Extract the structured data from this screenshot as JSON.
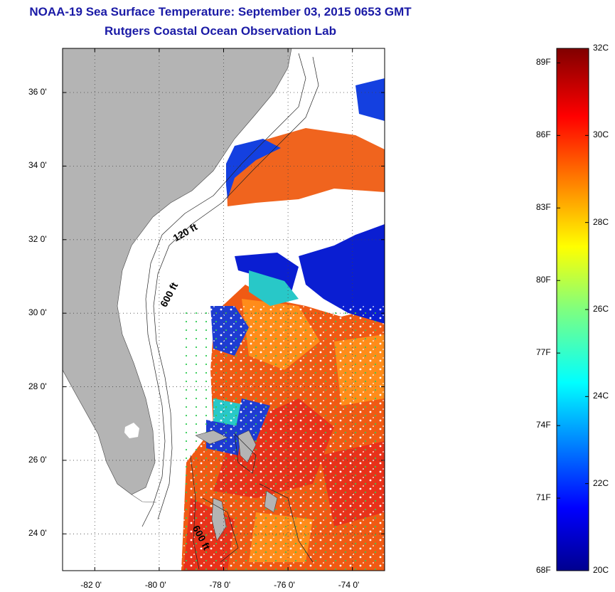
{
  "header": {
    "title": "NOAA-19 Sea Surface Temperature:  September 03, 2015 0653 GMT",
    "subtitle": "Rutgers Coastal Ocean Observation Lab"
  },
  "map": {
    "lat_ticks": [
      "24 0'",
      "26 0'",
      "28 0'",
      "30 0'",
      "32 0'",
      "34 0'",
      "36 0'"
    ],
    "lon_ticks": [
      "-82 0'",
      "-80 0'",
      "-78 0'",
      "-76 0'",
      "-74 0'"
    ],
    "contour_labels": [
      "120 ft",
      "600 ft",
      "600 ft"
    ],
    "lat_range": [
      23.0,
      37.2
    ],
    "lon_range": [
      -83.0,
      -73.0
    ],
    "grid": true,
    "colors": {
      "land": "#b4b4b4",
      "no_data": "#ffffff",
      "grid": "#555555"
    }
  },
  "colorbar": {
    "fahrenheit_labels": [
      "68F",
      "71F",
      "74F",
      "77F",
      "80F",
      "83F",
      "86F",
      "89F"
    ],
    "celsius_labels": [
      "20C",
      "22C",
      "24C",
      "26C",
      "28C",
      "30C",
      "32C"
    ],
    "range_celsius": [
      20,
      32
    ],
    "colormap": "jet"
  }
}
